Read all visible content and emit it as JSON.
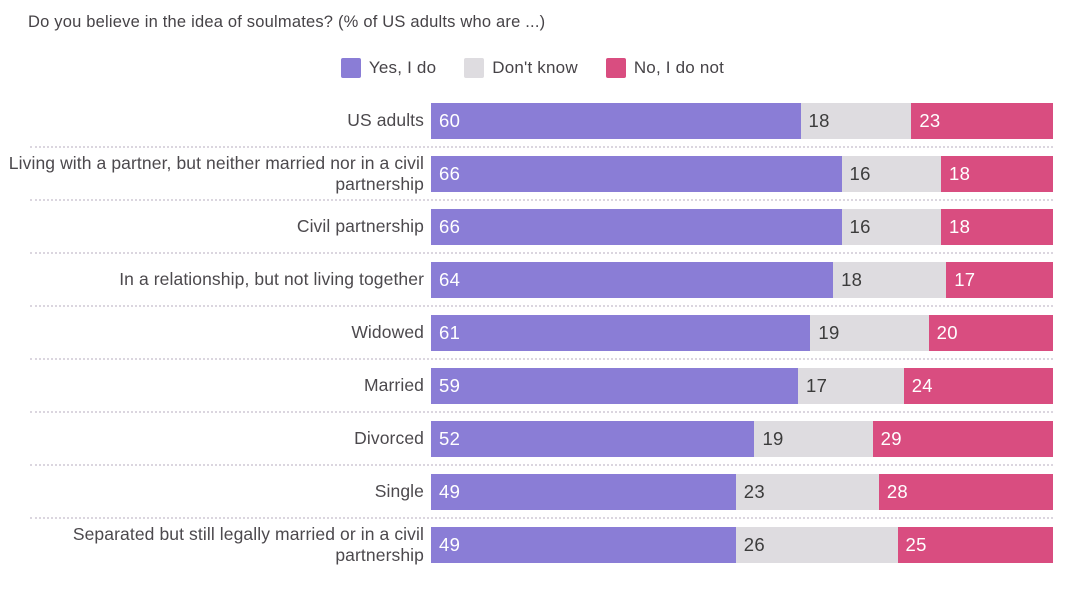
{
  "title": "Do you believe in the idea of soulmates? (% of US adults who are ...)",
  "legend": {
    "items": [
      {
        "label": "Yes, I do"
      },
      {
        "label": "Don't know"
      },
      {
        "label": "No, I do not"
      }
    ]
  },
  "colors": {
    "yes": "#8A7DD6",
    "dont_know": "#DEDCE0",
    "no": "#D94D80",
    "value_on_dark": "#FFFFFF",
    "value_on_light": "#3C3C3C",
    "text": "#464347",
    "separator": "#DBD6DF",
    "background": "#FFFFFF"
  },
  "chart_data": {
    "type": "bar",
    "subtype": "horizontal-stacked-percent",
    "title": "Do you believe in the idea of soulmates? (% of US adults who are ...)",
    "categories": [
      "US adults",
      "Living with a partner, but neither married nor in a civil partnership",
      "Civil partnership",
      "In a relationship, but not living together",
      "Widowed",
      "Married",
      "Divorced",
      "Single",
      "Separated but still legally married or in a civil partnership"
    ],
    "series": [
      {
        "name": "Yes, I do",
        "color_key": "yes",
        "values": [
          60,
          66,
          66,
          64,
          61,
          59,
          52,
          49,
          49
        ]
      },
      {
        "name": "Don't know",
        "color_key": "dont_know",
        "values": [
          18,
          16,
          16,
          18,
          19,
          17,
          19,
          23,
          26
        ]
      },
      {
        "name": "No, I do not",
        "color_key": "no",
        "values": [
          23,
          18,
          18,
          17,
          20,
          24,
          29,
          28,
          25
        ]
      }
    ],
    "value_labels": "inside-left of each segment",
    "axis": "none (segments normalized to full row width)",
    "legend_position": "top-center",
    "row_separator_style": "dotted"
  }
}
